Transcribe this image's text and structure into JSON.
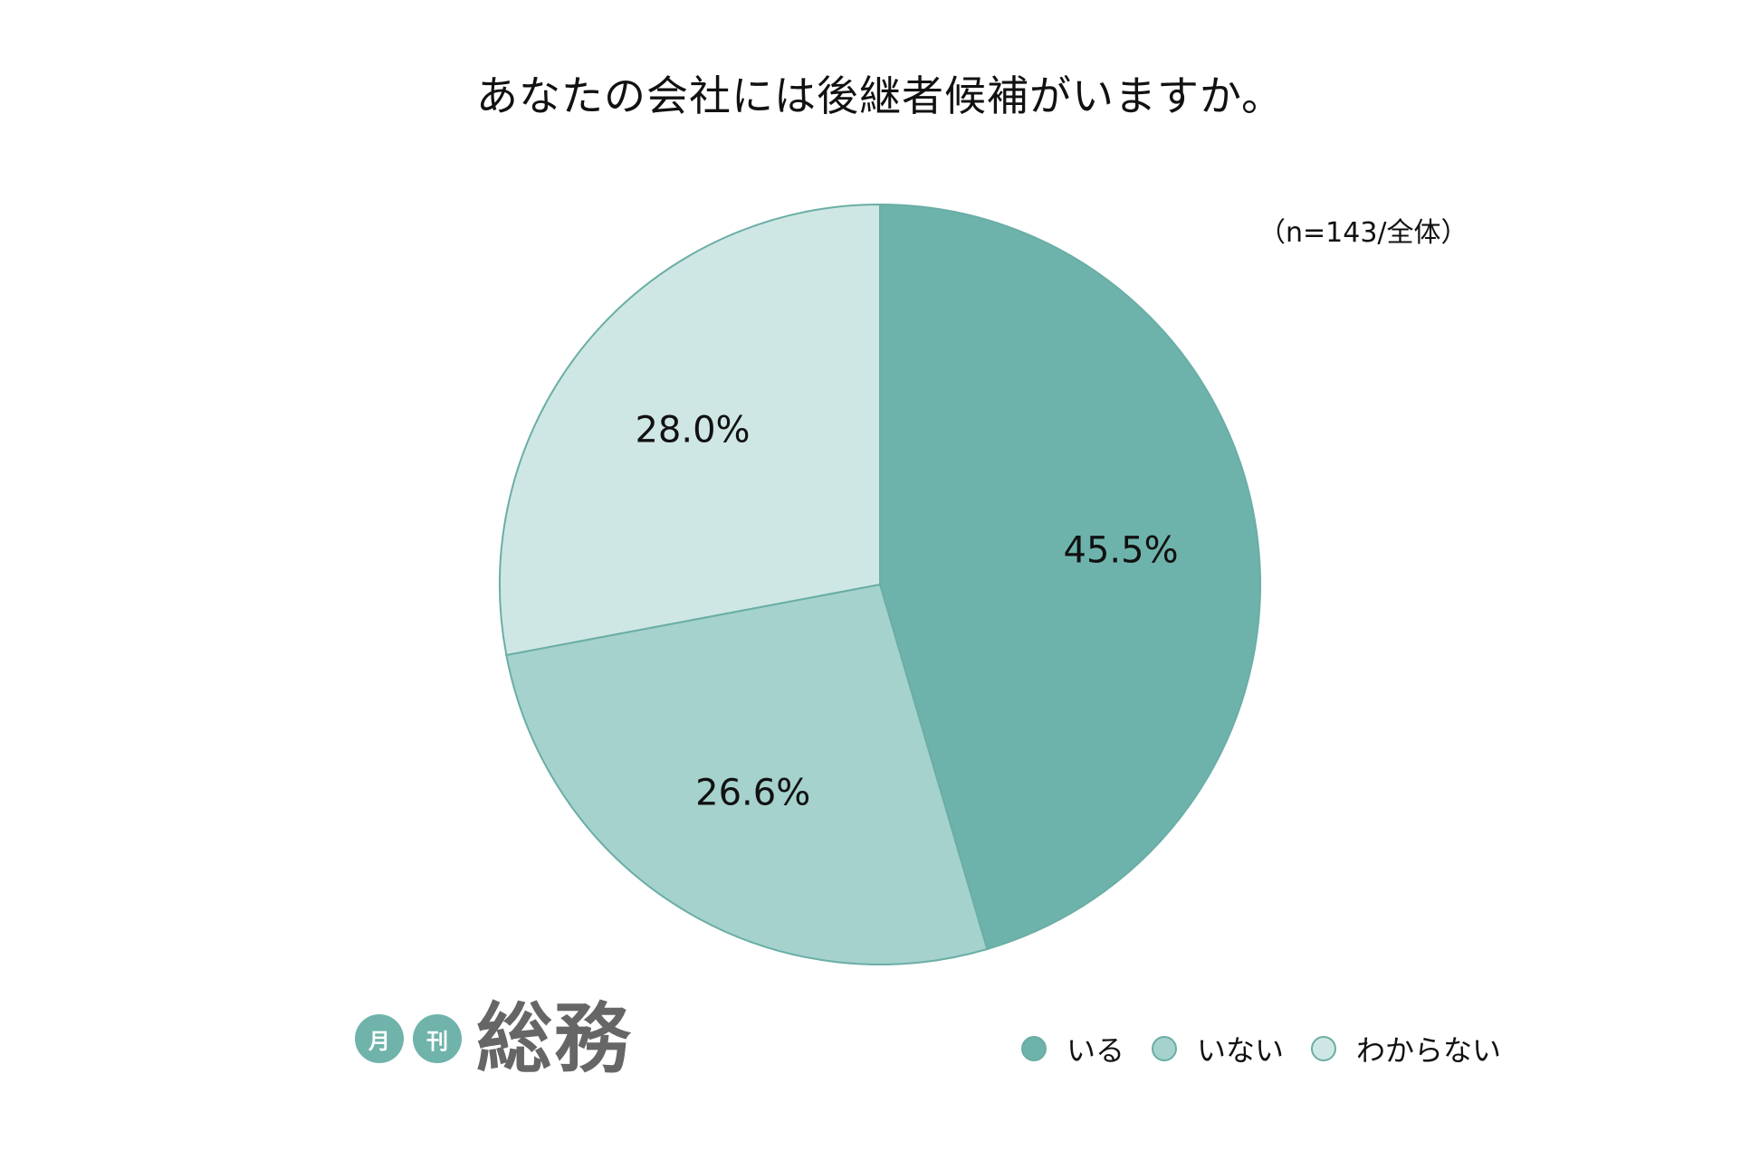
{
  "chart_data": {
    "type": "pie",
    "title": "あなたの会社には後継者候補がいますか。",
    "note": "（n=143/全体）",
    "slices": [
      {
        "label": "いる",
        "value": 45.5,
        "value_label": "45.5%",
        "color": "#6eb3ab"
      },
      {
        "label": "いない",
        "value": 26.6,
        "value_label": "26.6%",
        "color": "#a5d2cd"
      },
      {
        "label": "わからない",
        "value": 28.0,
        "value_label": "28.0%",
        "color": "#cfe7e4"
      }
    ],
    "legend_position": "bottom-right"
  },
  "logo": {
    "small1": "月",
    "small2": "刊",
    "main": "総務"
  }
}
